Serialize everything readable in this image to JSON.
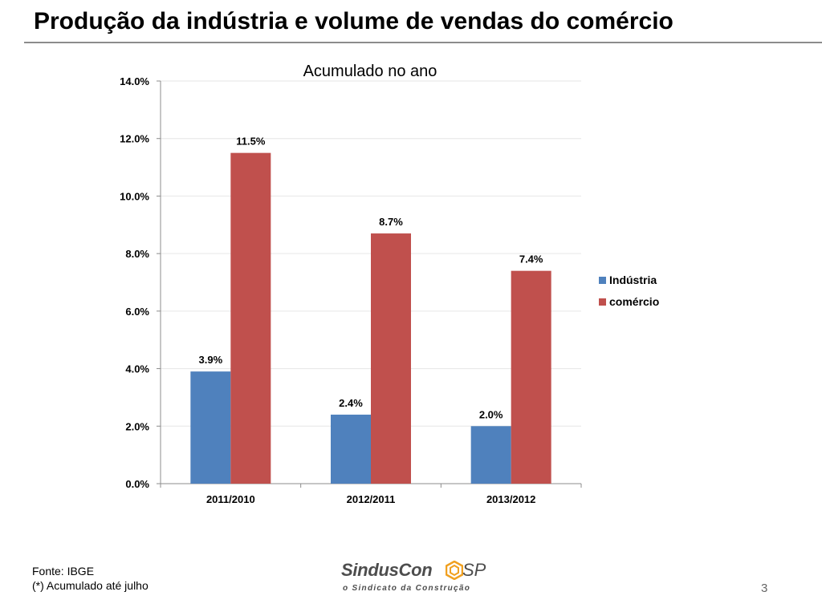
{
  "slide": {
    "title": "Produção da indústria e volume de vendas do comércio",
    "footer_source": "Fonte: IBGE",
    "footer_note": "(*) Acumulado até julho",
    "page_number": "3"
  },
  "logo": {
    "name": "SindusCon",
    "suffix": "SP",
    "tagline": "o Sindicato da Construção"
  },
  "colors": {
    "industria": "#4f81bd",
    "comercio": "#c0504d",
    "axis": "#8c8c8c",
    "grid": "#e6e6e6"
  },
  "chart_data": {
    "type": "bar",
    "title": "Acumulado no ano",
    "categories": [
      "2011/2010",
      "2012/2011",
      "2013/2012"
    ],
    "series": [
      {
        "name": "Indústria",
        "values": [
          3.9,
          2.4,
          2.0
        ],
        "labels": [
          "3.9%",
          "2.4%",
          "2.0%"
        ]
      },
      {
        "name": "comércio",
        "values": [
          11.5,
          8.7,
          7.4
        ],
        "labels": [
          "11.5%",
          "8.7%",
          "7.4%"
        ]
      }
    ],
    "ylim": [
      0,
      14
    ],
    "yticks": [
      0,
      2,
      4,
      6,
      8,
      10,
      12,
      14
    ],
    "ytick_labels": [
      "0.0%",
      "2.0%",
      "4.0%",
      "6.0%",
      "8.0%",
      "10.0%",
      "12.0%",
      "14.0%"
    ],
    "xlabel": "",
    "ylabel": "",
    "grid": true,
    "legend_position": "right"
  }
}
